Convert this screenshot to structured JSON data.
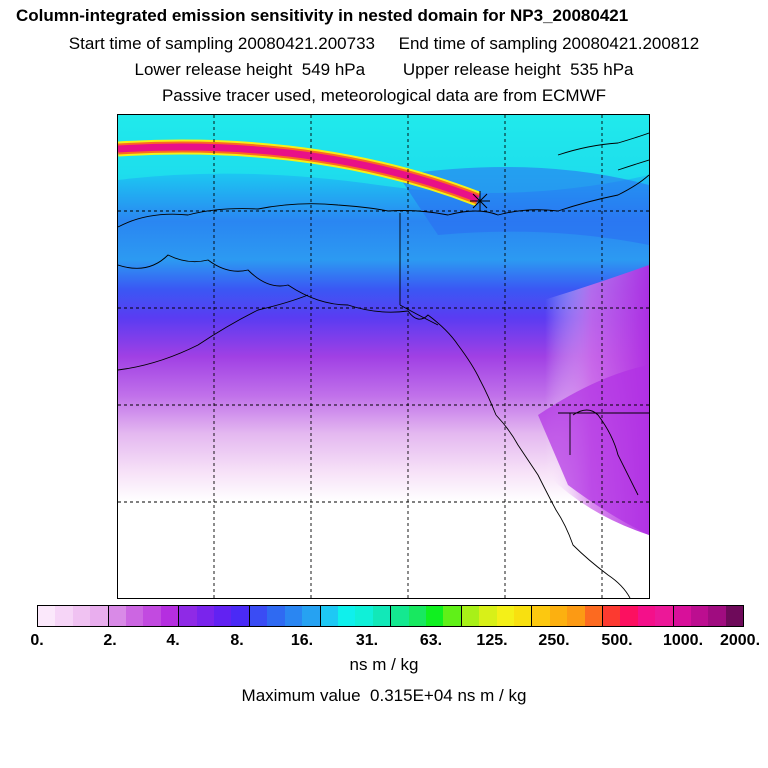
{
  "header": {
    "title": "Column-integrated emission sensitivity in nested domain for NP3_20080421",
    "line2": "Start time of sampling 20080421.200733     End time of sampling 20080421.200812",
    "line3": "Lower release height  549 hPa        Upper release height  535 hPa",
    "line4": "Passive tracer used, meteorological data are from ECMWF"
  },
  "colorbar": {
    "colors": [
      "#fbe8fb",
      "#f6d5f7",
      "#f0c2f2",
      "#e9aeee",
      "#d98ae7",
      "#cc66e2",
      "#c24ae0",
      "#b52ee0",
      "#8f2ae6",
      "#7a24ec",
      "#6222f2",
      "#4a2af6",
      "#3a4cf4",
      "#2f6af2",
      "#2a86f2",
      "#26a2f2",
      "#1ec8f4",
      "#0ff0ec",
      "#10f0d8",
      "#12e8b8",
      "#14e890",
      "#18e860",
      "#10f020",
      "#60f018",
      "#a8f018",
      "#d8f018",
      "#f4f018",
      "#f8e010",
      "#fcc810",
      "#fcb010",
      "#fc9a14",
      "#fc6a20",
      "#fc3a30",
      "#fc1060",
      "#f4108a",
      "#ec1898",
      "#d8109a",
      "#bc0e90",
      "#a00c80",
      "#6e0a5a"
    ],
    "majors": [
      4,
      8,
      12,
      16,
      20,
      24,
      28,
      32,
      36
    ],
    "tick_labels": [
      "0.",
      "2.",
      "4.",
      "8.",
      "16.",
      "31.",
      "63.",
      "125.",
      "250.",
      "500.",
      "1000.",
      "2000."
    ],
    "unit": "ns m / kg",
    "max_value": "Maximum value  0.315E+04 ns m / kg"
  }
}
